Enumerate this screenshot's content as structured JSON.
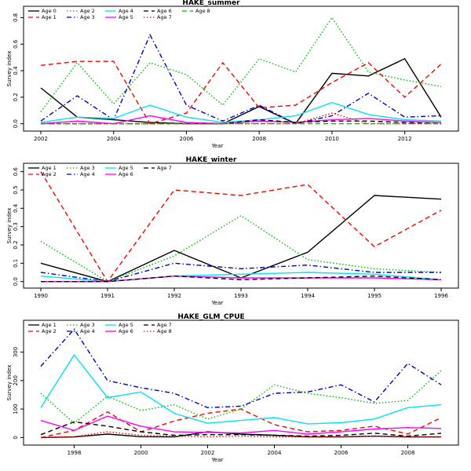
{
  "chart_data": [
    {
      "type": "line",
      "title": "HAKE_summer",
      "xlabel": "Year",
      "ylabel": "Survey index",
      "xlim": [
        2002,
        2013
      ],
      "ylim": [
        -0.02,
        0.85
      ],
      "xticks": [
        2002,
        2004,
        2006,
        2008,
        2010,
        2012
      ],
      "xtick_labels": [
        "2002",
        "2004",
        "2006",
        "2008",
        "2010",
        "2012"
      ],
      "yticks": [
        0,
        0.2,
        0.4,
        0.6,
        0.8
      ],
      "ytick_labels": [
        "0.0",
        "0.2",
        "0.4",
        "0.6",
        "0.8"
      ],
      "legend_position": "top-left",
      "legend_columns": 5,
      "x": [
        2002,
        2003,
        2004,
        2005,
        2006,
        2007,
        2008,
        2009,
        2010,
        2011,
        2012,
        2013
      ],
      "series": [
        {
          "name": "Age 0",
          "color": "#000000",
          "dash": "solid",
          "values": [
            0.27,
            0.05,
            0.03,
            0.01,
            0.0,
            0.0,
            0.13,
            0.0,
            0.38,
            0.36,
            0.49,
            0.05
          ]
        },
        {
          "name": "Age 1",
          "color": "#ff0000",
          "dash": "dashed",
          "values": [
            0.44,
            0.47,
            0.47,
            0.0,
            0.08,
            0.46,
            0.12,
            0.14,
            0.31,
            0.46,
            0.2,
            0.45
          ]
        },
        {
          "name": "Age 2",
          "color": "#00bb00",
          "dash": "dotted",
          "values": [
            0.09,
            0.46,
            0.15,
            0.46,
            0.37,
            0.14,
            0.49,
            0.39,
            0.8,
            0.39,
            0.33,
            0.28
          ]
        },
        {
          "name": "Age 3",
          "color": "#0000cc",
          "dash": "dashdot",
          "values": [
            0.02,
            0.21,
            0.03,
            0.67,
            0.14,
            0.02,
            0.14,
            0.0,
            0.06,
            0.23,
            0.05,
            0.06
          ]
        },
        {
          "name": "Age 4",
          "color": "#00e5ee",
          "dash": "solid",
          "values": [
            0.01,
            0.05,
            0.04,
            0.14,
            0.05,
            0.01,
            0.03,
            0.06,
            0.16,
            0.07,
            0.03,
            0.02
          ]
        },
        {
          "name": "Age 5",
          "color": "#ff00ff",
          "dash": "solid",
          "values": [
            0.0,
            0.02,
            0.0,
            0.06,
            0.01,
            0.0,
            0.02,
            0.01,
            0.03,
            0.04,
            0.02,
            0.01
          ]
        },
        {
          "name": "Age 6",
          "color": "#000000",
          "dash": "dashed",
          "values": [
            0.0,
            0.0,
            0.0,
            0.0,
            0.0,
            0.0,
            0.03,
            0.01,
            0.02,
            0.02,
            0.01,
            0.0
          ]
        },
        {
          "name": "Age 7",
          "color": "#ff0000",
          "dash": "dotted",
          "values": [
            0.0,
            0.0,
            0.0,
            0.0,
            0.0,
            0.0,
            0.0,
            0.0,
            0.08,
            0.0,
            0.0,
            0.0
          ]
        },
        {
          "name": "Age 8",
          "color": "#00bb00",
          "dash": "dashed",
          "values": [
            0.0,
            0.0,
            0.0,
            0.0,
            0.0,
            0.0,
            0.0,
            0.0,
            0.0,
            0.0,
            0.0,
            0.0
          ]
        }
      ]
    },
    {
      "type": "line",
      "title": "HAKE_winter",
      "xlabel": "Year",
      "ylabel": "Survey index",
      "xlim": [
        1990,
        1996
      ],
      "ylim": [
        -0.01,
        0.62
      ],
      "xticks": [
        1990,
        1991,
        1992,
        1993,
        1994,
        1995,
        1996
      ],
      "xtick_labels": [
        "1990",
        "1991",
        "1992",
        "1993",
        "1994",
        "1995",
        "1996"
      ],
      "yticks": [
        0,
        0.1,
        0.2,
        0.3,
        0.4,
        0.5,
        0.6
      ],
      "ytick_labels": [
        "0.0",
        "0.1",
        "0.2",
        "0.3",
        "0.4",
        "0.5",
        "0.6"
      ],
      "legend_position": "top-left",
      "legend_columns": 4,
      "x": [
        1990,
        1991,
        1992,
        1993,
        1994,
        1995,
        1996
      ],
      "series": [
        {
          "name": "Age 1",
          "color": "#000000",
          "dash": "solid",
          "values": [
            0.1,
            0.0,
            0.17,
            0.02,
            0.16,
            0.47,
            0.45
          ]
        },
        {
          "name": "Age 2",
          "color": "#ff0000",
          "dash": "dashed",
          "values": [
            0.6,
            0.0,
            0.5,
            0.47,
            0.53,
            0.19,
            0.39
          ]
        },
        {
          "name": "Age 3",
          "color": "#00bb00",
          "dash": "dotted",
          "values": [
            0.22,
            0.0,
            0.14,
            0.36,
            0.12,
            0.07,
            0.05
          ]
        },
        {
          "name": "Age 4",
          "color": "#0000cc",
          "dash": "dashdot",
          "values": [
            0.05,
            0.0,
            0.1,
            0.07,
            0.09,
            0.05,
            0.05
          ]
        },
        {
          "name": "Age 5",
          "color": "#00e5ee",
          "dash": "solid",
          "values": [
            0.03,
            0.0,
            0.03,
            0.04,
            0.05,
            0.04,
            0.01
          ]
        },
        {
          "name": "Age 6",
          "color": "#ff00ff",
          "dash": "solid",
          "values": [
            0.0,
            0.0,
            0.03,
            0.02,
            0.02,
            0.02,
            0.01
          ]
        },
        {
          "name": "Age 7",
          "color": "#000000",
          "dash": "dashed",
          "values": [
            0.0,
            0.0,
            0.03,
            0.01,
            0.02,
            0.03,
            0.01
          ]
        }
      ]
    },
    {
      "type": "line",
      "title": "HAKE_GLM_CPUE",
      "xlabel": "Year",
      "ylabel": "Survey index",
      "xlim": [
        1997,
        2009
      ],
      "ylim": [
        -10,
        395
      ],
      "xticks": [
        1998,
        2000,
        2002,
        2004,
        2006,
        2008
      ],
      "xtick_labels": [
        "1998",
        "2000",
        "2002",
        "2004",
        "2006",
        "2008"
      ],
      "yticks": [
        0,
        100,
        200,
        300
      ],
      "ytick_labels": [
        "0",
        "100",
        "200",
        "300"
      ],
      "legend_position": "top-left",
      "legend_columns": 4,
      "x": [
        1997,
        1998,
        1999,
        2000,
        2001,
        2002,
        2003,
        2004,
        2005,
        2006,
        2007,
        2008,
        2009
      ],
      "series": [
        {
          "name": "Age 1",
          "color": "#000000",
          "dash": "solid",
          "values": [
            0,
            2,
            12,
            3,
            2,
            20,
            12,
            8,
            2,
            2,
            5,
            2,
            2
          ]
        },
        {
          "name": "Age 2",
          "color": "#ff0000",
          "dash": "dashed",
          "values": [
            0,
            25,
            90,
            20,
            58,
            85,
            100,
            45,
            20,
            25,
            40,
            12,
            70
          ]
        },
        {
          "name": "Age 3",
          "color": "#00bb00",
          "dash": "dotted",
          "values": [
            155,
            50,
            145,
            95,
            115,
            65,
            100,
            185,
            155,
            140,
            120,
            130,
            235
          ]
        },
        {
          "name": "Age 4",
          "color": "#0000cc",
          "dash": "dashdot",
          "values": [
            250,
            380,
            200,
            175,
            155,
            105,
            110,
            155,
            160,
            185,
            125,
            260,
            185
          ]
        },
        {
          "name": "Age 5",
          "color": "#00e5ee",
          "dash": "solid",
          "values": [
            105,
            290,
            140,
            160,
            85,
            50,
            60,
            70,
            48,
            52,
            65,
            105,
            115
          ]
        },
        {
          "name": "Age 6",
          "color": "#ff00ff",
          "dash": "solid",
          "values": [
            60,
            25,
            75,
            40,
            20,
            18,
            16,
            25,
            12,
            20,
            30,
            35,
            32
          ]
        },
        {
          "name": "Age 7",
          "color": "#000000",
          "dash": "dashed",
          "values": [
            10,
            55,
            40,
            20,
            8,
            10,
            10,
            8,
            5,
            8,
            15,
            5,
            15
          ]
        },
        {
          "name": "Age 8",
          "color": "#ff0000",
          "dash": "dotted",
          "values": [
            0,
            3,
            20,
            8,
            5,
            3,
            5,
            3,
            2,
            3,
            5,
            2,
            2
          ]
        }
      ]
    }
  ]
}
